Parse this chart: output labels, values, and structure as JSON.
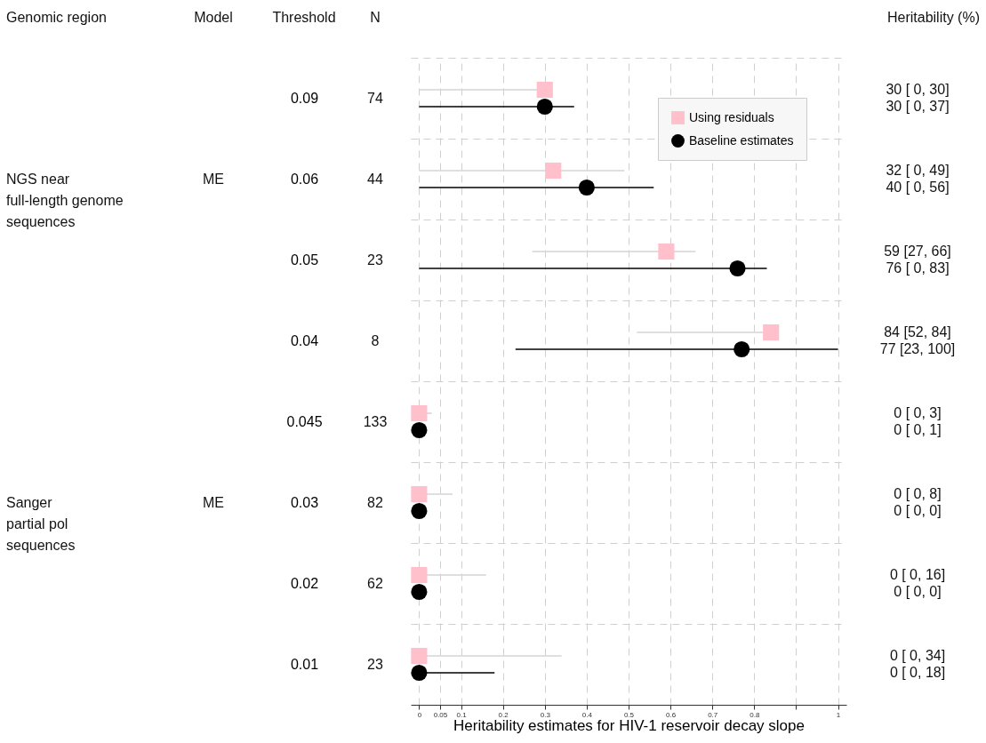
{
  "chart_data": {
    "type": "scatter",
    "orientation": "horizontal",
    "xlabel": "Heritability estimates for HIV-1 reservoir decay slope",
    "ylabel": "Threshold",
    "categories": [
      "0.09",
      "0.06",
      "0.05",
      "0.04",
      "0.045",
      "0.03",
      "0.02",
      "0.01"
    ],
    "series": [
      {
        "name": "Using residuals",
        "color": "#ffc0cb",
        "marker": "square",
        "values": [
          0.3,
          0.32,
          0.59,
          0.84,
          0,
          0,
          0,
          0
        ],
        "errors": [
          [
            0,
            0.3
          ],
          [
            0,
            0.49
          ],
          [
            0.27,
            0.66
          ],
          [
            0.52,
            0.84
          ],
          [
            0,
            0.03
          ],
          [
            0,
            0.08
          ],
          [
            0,
            0.16
          ],
          [
            0,
            0.34
          ]
        ]
      },
      {
        "name": "Baseline estimates",
        "color": "#000000",
        "marker": "circle",
        "values": [
          0.3,
          0.4,
          0.76,
          0.77,
          0,
          0,
          0,
          0
        ],
        "errors": [
          [
            0,
            0.37
          ],
          [
            0,
            0.56
          ],
          [
            0,
            0.83
          ],
          [
            0.23,
            1.0
          ],
          [
            0,
            0.01
          ],
          [
            0,
            0
          ],
          [
            0,
            0
          ],
          [
            0,
            0.18
          ]
        ]
      }
    ],
    "annotations": [
      "Genomic region",
      "Model",
      "N",
      "Heritability (%)",
      "74",
      "44",
      "23",
      "8",
      "133",
      "82",
      "62",
      "23",
      "30 [ 0, 30]",
      "30 [ 0, 37]",
      "32 [ 0, 49]",
      "40 [ 0, 56]",
      "59 [27, 66]",
      "76 [ 0, 83]",
      "84 [52, 84]",
      "77 [23, 100]",
      "0 [ 0,  3]",
      "0 [ 0,  1]",
      "0 [ 0,  8]",
      "0 [ 0,  0]",
      "0 [ 0, 16]",
      "0 [ 0,  0]",
      "0 [ 0, 34]",
      "0 [ 0, 18]",
      "NGS near\n full-length genome\n sequences",
      "ME",
      "Sanger\n partial pol\n sequences",
      "ME"
    ],
    "xlim": [
      -0.02,
      1.02
    ],
    "xticks": [
      0,
      0.05,
      0.1,
      0.2,
      0.3,
      0.4,
      0.5,
      0.6,
      0.7,
      0.8,
      {
        "value": 0.9,
        "label": null
      },
      1
    ],
    "grid": true,
    "legend": "top right"
  }
}
